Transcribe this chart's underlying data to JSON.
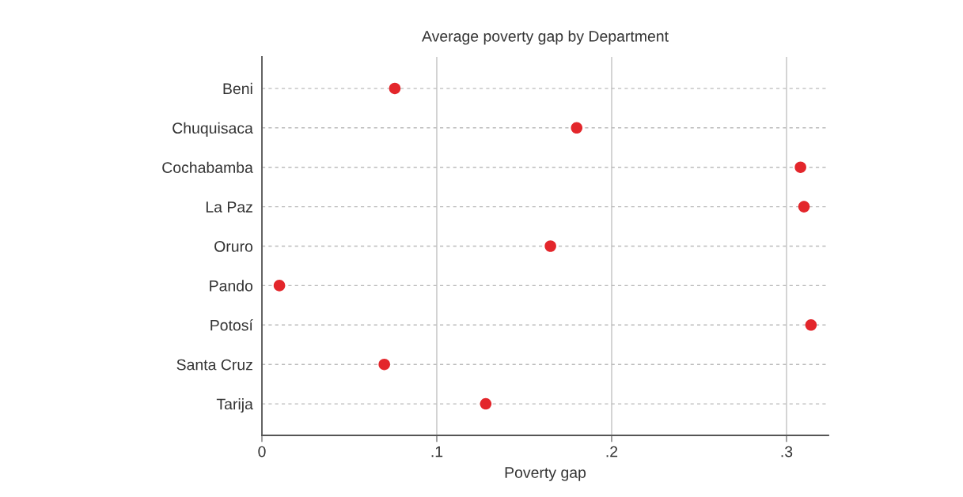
{
  "chart_data": {
    "type": "scatter",
    "orientation": "horizontal",
    "title": "Average poverty gap by Department",
    "xlabel": "Poverty gap",
    "categories": [
      "Beni",
      "Chuquisaca",
      "Cochabamba",
      "La Paz",
      "Oruro",
      "Pando",
      "Potosí",
      "Santa Cruz",
      "Tarija"
    ],
    "values": [
      0.076,
      0.18,
      0.308,
      0.31,
      0.165,
      0.01,
      0.314,
      0.07,
      0.128
    ],
    "color": "#e3262b",
    "marker": "circle",
    "xlim": [
      0,
      0.324
    ],
    "xticks": [
      0,
      {
        "value": 0.1,
        "label": ".1"
      },
      {
        "value": 0.2,
        "label": ".2"
      },
      {
        "value": 0.3,
        "label": ".3"
      }
    ],
    "grid": true
  }
}
